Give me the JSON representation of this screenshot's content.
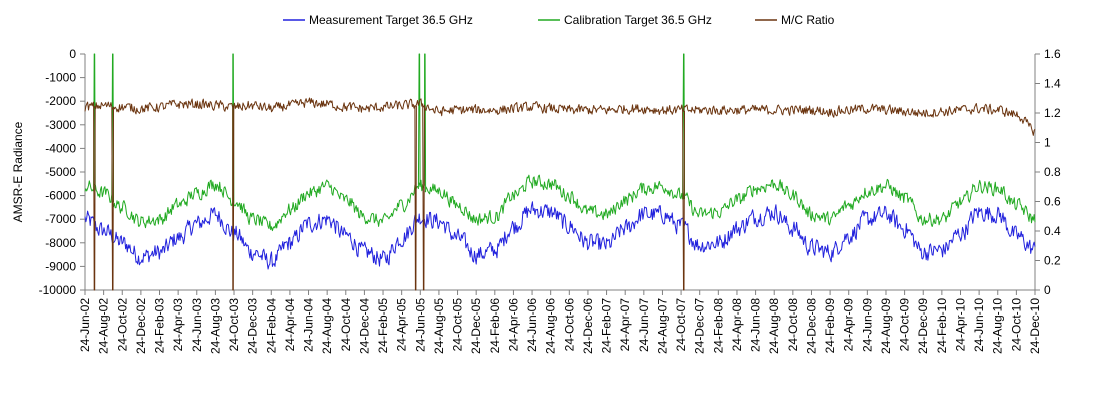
{
  "chart_data": {
    "type": "line",
    "title": "",
    "ylabel": "AMSR-E Radiance",
    "y2label": "",
    "ylim": [
      -10000,
      0
    ],
    "y2lim": [
      0,
      1.6
    ],
    "yticks": [
      0,
      -1000,
      -2000,
      -3000,
      -4000,
      -5000,
      -6000,
      -7000,
      -8000,
      -9000,
      -10000
    ],
    "y2ticks": [
      1.6,
      1.4,
      1.2,
      1,
      0.8,
      0.6,
      0.4,
      0.2,
      0
    ],
    "xlim": [
      "2002-06-24",
      "2010-12-24"
    ],
    "x_tick_labels": [
      "24-Jun-02",
      "24-Aug-02",
      "24-Oct-02",
      "24-Dec-02",
      "24-Feb-03",
      "24-Apr-03",
      "24-Jun-03",
      "24-Aug-03",
      "24-Oct-03",
      "24-Dec-03",
      "24-Feb-04",
      "24-Apr-04",
      "24-Jun-04",
      "24-Aug-04",
      "24-Oct-04",
      "24-Dec-04",
      "24-Feb-05",
      "24-Apr-05",
      "24-Jun-05",
      "24-Aug-05",
      "24-Oct-05",
      "24-Dec-05",
      "24-Feb-06",
      "24-Apr-06",
      "24-Jun-06",
      "24-Aug-06",
      "24-Oct-06",
      "24-Dec-06",
      "24-Feb-07",
      "24-Apr-07",
      "24-Jun-07",
      "24-Aug-07",
      "24-Oct-07",
      "24-Dec-07",
      "24-Feb-08",
      "24-Apr-08",
      "24-Jun-08",
      "24-Aug-08",
      "24-Oct-08",
      "24-Dec-08",
      "24-Feb-09",
      "24-Apr-09",
      "24-Jun-09",
      "24-Aug-09",
      "24-Oct-09",
      "24-Dec-09",
      "24-Feb-10",
      "24-Apr-10",
      "24-Jun-10",
      "24-Aug-10",
      "24-Oct-10",
      "24-Dec-10"
    ],
    "grid": false,
    "legend": "top",
    "series": [
      {
        "name": "Measurement Target 36.5 GHz",
        "color": "#2222dd",
        "axis": "left",
        "x": [
          "2002-06-24",
          "2002-08-24",
          "2002-10-24",
          "2002-12-24",
          "2003-02-24",
          "2003-04-24",
          "2003-06-24",
          "2003-08-24",
          "2003-10-24",
          "2003-12-24",
          "2004-02-24",
          "2004-04-24",
          "2004-06-24",
          "2004-08-24",
          "2004-10-24",
          "2004-12-24",
          "2005-02-24",
          "2005-04-24",
          "2005-06-24",
          "2005-08-24",
          "2005-10-24",
          "2005-12-24",
          "2006-02-24",
          "2006-04-24",
          "2006-06-24",
          "2006-08-24",
          "2006-10-24",
          "2006-12-24",
          "2007-02-24",
          "2007-04-24",
          "2007-06-24",
          "2007-08-24",
          "2007-10-24",
          "2007-12-24",
          "2008-02-24",
          "2008-04-24",
          "2008-06-24",
          "2008-08-24",
          "2008-10-24",
          "2008-12-24",
          "2009-02-24",
          "2009-04-24",
          "2009-06-24",
          "2009-08-24",
          "2009-10-24",
          "2009-12-24",
          "2010-02-24",
          "2010-04-24",
          "2010-06-24",
          "2010-08-24",
          "2010-10-24",
          "2010-12-24"
        ],
        "values": [
          -7000,
          -7500,
          -8000,
          -8600,
          -8400,
          -7800,
          -7200,
          -6800,
          -7600,
          -8400,
          -8800,
          -8000,
          -7200,
          -7000,
          -7700,
          -8400,
          -8700,
          -7800,
          -6900,
          -7100,
          -7800,
          -8500,
          -8300,
          -7300,
          -6600,
          -6700,
          -7300,
          -8000,
          -8100,
          -7400,
          -6800,
          -6800,
          -7300,
          -8100,
          -8000,
          -7400,
          -6900,
          -6700,
          -7400,
          -8200,
          -8400,
          -7700,
          -7000,
          -6800,
          -7400,
          -8400,
          -8300,
          -7600,
          -6700,
          -6800,
          -7700,
          -8300
        ]
      },
      {
        "name": "Calibration Target 36.5 GHz",
        "color": "#22aa22",
        "axis": "left",
        "x": [
          "2002-06-24",
          "2002-08-24",
          "2002-10-24",
          "2002-12-24",
          "2003-02-24",
          "2003-04-24",
          "2003-06-24",
          "2003-08-24",
          "2003-10-24",
          "2003-12-24",
          "2004-02-24",
          "2004-04-24",
          "2004-06-24",
          "2004-08-24",
          "2004-10-24",
          "2004-12-24",
          "2005-02-24",
          "2005-04-24",
          "2005-06-24",
          "2005-08-24",
          "2005-10-24",
          "2005-12-24",
          "2006-02-24",
          "2006-04-24",
          "2006-06-24",
          "2006-08-24",
          "2006-10-24",
          "2006-12-24",
          "2007-02-24",
          "2007-04-24",
          "2007-06-24",
          "2007-08-24",
          "2007-10-24",
          "2007-12-24",
          "2008-02-24",
          "2008-04-24",
          "2008-06-24",
          "2008-08-24",
          "2008-10-24",
          "2008-12-24",
          "2009-02-24",
          "2009-04-24",
          "2009-06-24",
          "2009-08-24",
          "2009-10-24",
          "2009-12-24",
          "2010-02-24",
          "2010-04-24",
          "2010-06-24",
          "2010-08-24",
          "2010-10-24",
          "2010-12-24"
        ],
        "values": [
          -5600,
          -5900,
          -6500,
          -7100,
          -7000,
          -6400,
          -5900,
          -5500,
          -6200,
          -7000,
          -7300,
          -6600,
          -5900,
          -5600,
          -6200,
          -6900,
          -7100,
          -6400,
          -5600,
          -5800,
          -6400,
          -7000,
          -6900,
          -6000,
          -5400,
          -5500,
          -6000,
          -6700,
          -6800,
          -6200,
          -5700,
          -5600,
          -6000,
          -6800,
          -6700,
          -6200,
          -5700,
          -5500,
          -6000,
          -6800,
          -7000,
          -6400,
          -5800,
          -5600,
          -6100,
          -7000,
          -7000,
          -6300,
          -5600,
          -5700,
          -6400,
          -7000
        ]
      },
      {
        "name": "M/C Ratio",
        "color": "#6b3510",
        "axis": "right",
        "x": [
          "2002-06-24",
          "2002-08-24",
          "2002-10-24",
          "2002-12-24",
          "2003-02-24",
          "2003-04-24",
          "2003-06-24",
          "2003-08-24",
          "2003-10-24",
          "2003-12-24",
          "2004-02-24",
          "2004-04-24",
          "2004-06-24",
          "2004-08-24",
          "2004-10-24",
          "2004-12-24",
          "2005-02-24",
          "2005-04-24",
          "2005-06-24",
          "2005-08-24",
          "2005-10-24",
          "2005-12-24",
          "2006-02-24",
          "2006-04-24",
          "2006-06-24",
          "2006-08-24",
          "2006-10-24",
          "2006-12-24",
          "2007-02-24",
          "2007-04-24",
          "2007-06-24",
          "2007-08-24",
          "2007-10-24",
          "2007-12-24",
          "2008-02-24",
          "2008-04-24",
          "2008-06-24",
          "2008-08-24",
          "2008-10-24",
          "2008-12-24",
          "2009-02-24",
          "2009-04-24",
          "2009-06-24",
          "2009-08-24",
          "2009-10-24",
          "2009-12-24",
          "2010-02-24",
          "2010-04-24",
          "2010-06-24",
          "2010-08-24",
          "2010-10-24",
          "2010-12-24"
        ],
        "values": [
          1.24,
          1.25,
          1.24,
          1.23,
          1.24,
          1.26,
          1.26,
          1.25,
          1.24,
          1.25,
          1.23,
          1.25,
          1.27,
          1.26,
          1.24,
          1.23,
          1.24,
          1.25,
          1.26,
          1.21,
          1.22,
          1.22,
          1.22,
          1.23,
          1.24,
          1.23,
          1.22,
          1.22,
          1.22,
          1.23,
          1.23,
          1.22,
          1.22,
          1.22,
          1.22,
          1.22,
          1.22,
          1.22,
          1.22,
          1.22,
          1.21,
          1.22,
          1.23,
          1.22,
          1.21,
          1.2,
          1.21,
          1.22,
          1.23,
          1.22,
          1.19,
          1.08
        ]
      }
    ],
    "spikes": [
      {
        "series": "Calibration Target 36.5 GHz",
        "date": "2002-07-24",
        "value": 0
      },
      {
        "series": "Calibration Target 36.5 GHz",
        "date": "2002-09-22",
        "value": 0
      },
      {
        "series": "Calibration Target 36.5 GHz",
        "date": "2003-10-20",
        "value": 0
      },
      {
        "series": "Calibration Target 36.5 GHz",
        "date": "2005-06-20",
        "value": 0
      },
      {
        "series": "Calibration Target 36.5 GHz",
        "date": "2005-07-08",
        "value": 0
      },
      {
        "series": "Calibration Target 36.5 GHz",
        "date": "2007-11-01",
        "value": 0
      },
      {
        "series": "M/C Ratio",
        "date": "2002-07-24",
        "value": 0
      },
      {
        "series": "M/C Ratio",
        "date": "2002-09-22",
        "value": 0
      },
      {
        "series": "M/C Ratio",
        "date": "2003-10-20",
        "value": 0
      },
      {
        "series": "M/C Ratio",
        "date": "2005-06-08",
        "value": 0
      },
      {
        "series": "M/C Ratio",
        "date": "2005-07-04",
        "value": 0
      },
      {
        "series": "M/C Ratio",
        "date": "2007-11-01",
        "value": 0
      }
    ]
  }
}
